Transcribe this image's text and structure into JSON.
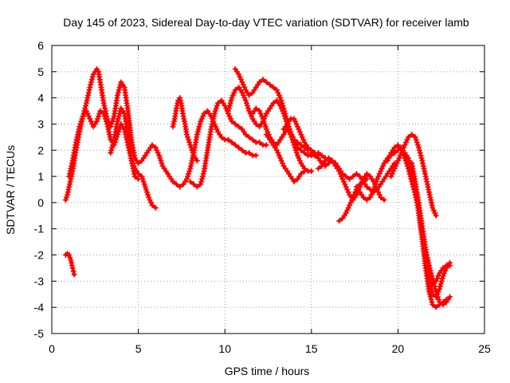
{
  "chart_data": {
    "type": "line",
    "title": "Day 145 of 2023, Sidereal Day-to-day VTEC variation (SDTVAR) for receiver lamb",
    "xlabel": "GPS time / hours",
    "ylabel": "SDTVAR / TECUs",
    "xlim": [
      0,
      25
    ],
    "ylim": [
      -5,
      6
    ],
    "xticks": [
      "0",
      "5",
      "10",
      "15",
      "20",
      "25"
    ],
    "yticks": [
      "-5",
      "-4",
      "-3",
      "-2",
      "-1",
      "0",
      "1",
      "2",
      "3",
      "4",
      "5",
      "6"
    ],
    "grid": true,
    "marker": "plus",
    "color": "#ff0000",
    "series": [
      {
        "x": [
          0.8,
          0.9,
          1.0,
          1.2,
          1.4,
          1.6,
          1.8,
          2.0,
          2.2,
          2.4,
          2.6,
          2.7,
          2.8,
          3.0,
          3.2,
          3.4,
          3.6,
          3.8,
          4.0,
          4.2,
          4.4,
          4.6,
          4.8,
          5.0,
          5.2,
          5.4,
          5.6,
          5.8,
          6.0,
          6.2,
          6.4,
          6.6,
          6.8,
          7.0,
          7.2,
          7.4,
          7.6,
          7.8,
          8.0,
          8.2,
          8.4,
          8.6,
          8.8,
          9.0,
          9.2,
          9.4,
          9.6,
          9.8,
          10.0,
          10.2,
          10.4,
          10.6,
          10.8,
          11.0,
          11.2,
          11.4,
          11.6,
          11.8
        ],
        "y": [
          0.1,
          0.3,
          0.6,
          1.2,
          2.0,
          2.7,
          3.3,
          3.8,
          4.4,
          4.9,
          5.1,
          5.0,
          4.6,
          3.8,
          3.2,
          2.9,
          3.3,
          4.1,
          4.6,
          4.4,
          3.5,
          2.4,
          1.7,
          1.5,
          1.6,
          1.8,
          2.0,
          2.2,
          2.1,
          1.8,
          1.4,
          1.2,
          1.0,
          0.8,
          0.7,
          0.6,
          0.7,
          0.9,
          1.3,
          1.9,
          2.6,
          3.1,
          3.4,
          3.5,
          3.3,
          3.0,
          2.7,
          2.5,
          2.4,
          2.4,
          2.3,
          2.2,
          2.1,
          2.0,
          1.9,
          1.9,
          1.8,
          1.8
        ]
      },
      {
        "x": [
          1.0,
          1.2,
          1.4,
          1.6,
          1.8,
          2.0,
          2.2,
          2.4,
          2.6,
          2.8,
          3.0,
          3.2,
          3.4,
          3.6,
          3.8,
          4.0,
          4.2,
          4.4,
          4.6,
          4.8,
          5.0,
          5.2,
          5.4,
          5.6,
          5.8,
          6.0
        ],
        "y": [
          1.0,
          1.6,
          2.3,
          2.9,
          3.3,
          3.5,
          3.2,
          2.9,
          3.1,
          3.5,
          3.4,
          3.0,
          2.4,
          2.2,
          2.6,
          3.0,
          2.8,
          2.2,
          1.7,
          1.3,
          1.1,
          1.0,
          0.6,
          0.2,
          -0.1,
          -0.2
        ]
      },
      {
        "x": [
          0.8,
          0.9,
          1.0,
          1.1,
          1.2,
          1.3
        ],
        "y": [
          -2.0,
          -1.95,
          -2.0,
          -2.2,
          -2.5,
          -2.75
        ]
      },
      {
        "x": [
          3.4,
          3.6,
          3.8,
          4.0,
          4.2,
          4.4,
          4.6,
          4.8,
          5.0
        ],
        "y": [
          1.9,
          2.4,
          3.1,
          3.6,
          3.4,
          2.6,
          1.6,
          1.0,
          0.9
        ]
      },
      {
        "x": [
          7.0,
          7.1,
          7.2,
          7.3,
          7.4,
          7.5,
          7.6,
          7.7,
          7.8,
          8.0,
          8.2,
          8.4
        ],
        "y": [
          2.9,
          3.2,
          3.6,
          3.9,
          4.0,
          3.7,
          3.3,
          3.0,
          2.6,
          2.2,
          1.8,
          1.6
        ]
      },
      {
        "x": [
          8.0,
          8.2,
          8.4,
          8.6,
          8.8,
          9.0,
          9.2,
          9.4,
          9.6,
          9.8,
          10.0,
          10.2,
          10.4,
          10.6,
          10.8,
          11.0,
          11.2,
          11.4,
          11.6,
          11.8,
          12.0,
          12.2,
          12.4
        ],
        "y": [
          0.8,
          0.7,
          0.6,
          0.7,
          1.2,
          2.0,
          2.8,
          3.4,
          3.8,
          3.9,
          3.7,
          3.4,
          3.1,
          3.0,
          2.9,
          2.8,
          2.6,
          2.5,
          2.4,
          2.3,
          2.3,
          2.2,
          2.2
        ]
      },
      {
        "x": [
          10.2,
          10.4,
          10.6,
          10.8,
          11.0,
          11.2,
          11.4,
          11.6,
          11.8,
          12.0,
          12.2,
          12.4,
          12.6,
          12.8,
          13.0,
          13.2,
          13.4,
          13.6,
          13.8,
          14.0,
          14.2,
          14.4,
          14.6,
          14.8,
          15.0,
          15.2,
          15.4,
          15.6,
          15.8,
          16.0
        ],
        "y": [
          3.5,
          4.0,
          4.3,
          4.4,
          4.2,
          3.9,
          3.5,
          3.2,
          3.0,
          2.9,
          3.1,
          3.4,
          3.6,
          3.8,
          3.9,
          3.7,
          3.4,
          3.0,
          2.6,
          2.3,
          2.1,
          2.0,
          1.9,
          1.8,
          1.8,
          1.8,
          1.9,
          1.8,
          1.7,
          1.6
        ]
      },
      {
        "x": [
          10.6,
          10.8,
          11.0,
          11.2,
          11.4,
          11.6,
          11.8,
          12.0,
          12.2,
          12.4,
          12.6,
          12.8,
          13.0,
          13.2,
          13.4,
          13.6,
          13.8,
          14.0,
          14.2,
          14.4,
          14.6,
          14.8
        ],
        "y": [
          5.1,
          4.9,
          4.6,
          4.3,
          4.1,
          4.2,
          4.4,
          4.6,
          4.7,
          4.6,
          4.5,
          4.4,
          4.3,
          4.0,
          3.6,
          3.1,
          2.7,
          2.4,
          2.3,
          2.2,
          2.1,
          2.0
        ]
      },
      {
        "x": [
          11.6,
          11.8,
          12.0,
          12.2,
          12.4,
          12.6,
          12.8,
          13.0,
          13.2,
          13.4,
          13.6,
          13.8,
          14.0,
          14.2,
          14.4,
          14.6,
          14.8,
          15.0
        ],
        "y": [
          3.4,
          3.6,
          3.5,
          3.2,
          2.8,
          2.5,
          2.3,
          2.2,
          2.4,
          2.6,
          2.8,
          2.6,
          2.2,
          1.8,
          1.5,
          1.3,
          1.2,
          1.2
        ]
      },
      {
        "x": [
          12.4,
          12.6,
          12.8,
          13.0,
          13.2,
          13.4,
          13.6,
          13.8,
          14.0,
          14.2,
          14.4,
          14.6
        ],
        "y": [
          2.6,
          2.4,
          2.2,
          2.0,
          1.7,
          1.4,
          1.2,
          1.0,
          0.8,
          0.9,
          1.1,
          1.2
        ]
      },
      {
        "x": [
          13.4,
          13.6,
          13.8,
          14.0,
          14.2,
          14.4,
          14.6,
          14.8,
          15.0,
          15.2,
          15.4
        ],
        "y": [
          2.8,
          3.0,
          3.2,
          3.2,
          2.9,
          2.6,
          2.3,
          2.1,
          2.0,
          1.9,
          1.8
        ]
      },
      {
        "x": [
          15.0,
          15.2,
          15.4,
          15.6,
          15.8,
          16.0,
          16.2,
          16.4,
          16.6,
          16.8,
          17.0,
          17.2,
          17.4,
          17.6,
          17.8,
          18.0,
          18.2,
          18.4,
          18.6,
          18.8,
          19.0,
          19.2,
          19.4,
          19.6,
          19.8
        ],
        "y": [
          1.9,
          1.8,
          1.7,
          1.5,
          1.4,
          1.5,
          1.6,
          1.5,
          1.3,
          1.1,
          1.0,
          0.9,
          1.0,
          1.1,
          1.0,
          0.8,
          0.6,
          0.5,
          0.4,
          0.5,
          0.7,
          0.9,
          1.1,
          1.3,
          1.5
        ]
      },
      {
        "x": [
          15.4,
          15.6,
          15.8,
          16.0,
          16.2,
          16.4,
          16.6,
          16.8,
          17.0,
          17.2,
          17.4,
          17.6,
          17.8,
          18.0,
          18.2,
          18.4,
          18.6,
          18.8,
          19.0,
          19.2
        ],
        "y": [
          1.3,
          1.4,
          1.6,
          1.7,
          1.6,
          1.4,
          1.2,
          0.9,
          0.6,
          0.3,
          0.1,
          0.3,
          0.6,
          0.9,
          1.1,
          1.0,
          0.8,
          0.5,
          0.2,
          0.1
        ]
      },
      {
        "x": [
          16.6,
          16.8,
          17.0,
          17.2,
          17.4,
          17.6,
          17.8,
          18.0,
          18.2
        ],
        "y": [
          -0.7,
          -0.6,
          -0.4,
          -0.1,
          0.2,
          0.5,
          0.7,
          0.8,
          0.9
        ]
      },
      {
        "x": [
          17.6,
          17.8,
          18.0,
          18.2,
          18.4,
          18.6,
          18.8,
          19.0,
          19.2,
          19.4,
          19.6,
          19.8,
          20.0,
          20.2
        ],
        "y": [
          0.6,
          0.4,
          0.2,
          0.1,
          0.2,
          0.5,
          0.9,
          1.2,
          1.5,
          1.7,
          1.8,
          1.9,
          2.0,
          2.1
        ]
      },
      {
        "x": [
          19.4,
          19.6,
          19.8,
          20.0,
          20.2,
          20.4,
          20.6,
          20.8,
          21.0,
          21.2,
          21.4,
          21.6,
          21.8
        ],
        "y": [
          1.6,
          1.9,
          2.1,
          2.2,
          2.0,
          1.7,
          1.3,
          0.8,
          0.3,
          -0.3,
          -1.0,
          -1.8,
          -2.6
        ]
      },
      {
        "x": [
          19.6,
          19.8,
          20.0,
          20.2,
          20.4,
          20.6,
          20.8,
          21.0,
          21.2,
          21.4,
          21.6,
          21.8,
          22.0,
          22.2
        ],
        "y": [
          1.0,
          1.3,
          1.6,
          1.9,
          2.2,
          2.5,
          2.6,
          2.5,
          2.1,
          1.6,
          1.0,
          0.4,
          -0.2,
          -0.5
        ]
      },
      {
        "x": [
          20.4,
          20.6,
          20.8,
          21.0,
          21.2,
          21.4,
          21.6,
          21.8,
          22.0,
          22.2,
          22.4,
          22.6,
          22.8
        ],
        "y": [
          1.9,
          1.7,
          1.2,
          0.4,
          -0.4,
          -1.4,
          -2.5,
          -3.4,
          -3.9,
          -4.0,
          -3.9,
          -3.8,
          -3.7
        ]
      },
      {
        "x": [
          20.8,
          21.0,
          21.2,
          21.4,
          21.6,
          21.8,
          22.0,
          22.2,
          22.4,
          22.6,
          22.8,
          23.0
        ],
        "y": [
          1.5,
          0.8,
          0.0,
          -0.9,
          -1.8,
          -2.6,
          -3.1,
          -3.0,
          -2.7,
          -2.5,
          -2.4,
          -2.4
        ]
      },
      {
        "x": [
          21.2,
          21.4,
          21.6,
          21.8,
          22.0,
          22.2,
          22.4,
          22.6,
          22.8,
          23.0
        ],
        "y": [
          -0.2,
          -1.1,
          -2.0,
          -2.9,
          -3.5,
          -3.6,
          -3.3,
          -2.8,
          -2.5,
          -2.3
        ]
      },
      {
        "x": [
          21.6,
          21.8,
          22.0,
          22.2,
          22.4,
          22.6,
          22.8,
          23.0
        ],
        "y": [
          -1.8,
          -2.4,
          -2.9,
          -3.4,
          -3.8,
          -3.9,
          -3.8,
          -3.6
        ]
      }
    ]
  }
}
